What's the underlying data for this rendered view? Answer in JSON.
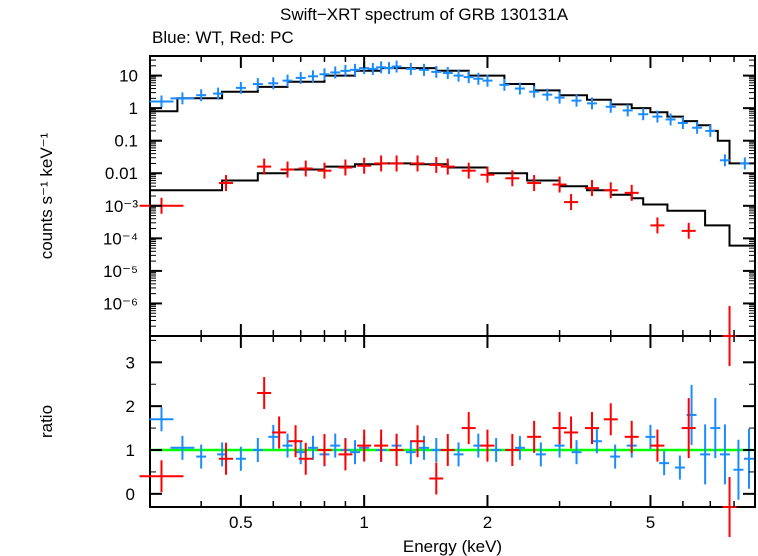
{
  "chart_data": [
    {
      "type": "scatter",
      "title": "Swift−XRT spectrum of GRB 130131A",
      "subtitle": "Blue: WT, Red: PC",
      "xlabel": "Energy (keV)",
      "ylabel": "counts s⁻¹ keV⁻¹",
      "xscale": "log",
      "yscale": "log",
      "xlim": [
        0.3,
        9.0
      ],
      "ylim": [
        1e-07,
        40
      ],
      "xticks": [
        "0.5",
        "1",
        "2",
        "5"
      ],
      "yticks": [
        {
          "value": 10,
          "label": "10"
        },
        {
          "value": 1,
          "label": "1"
        },
        {
          "value": 0.1,
          "label": "0.1"
        },
        {
          "value": 0.01,
          "label": "0.01"
        },
        {
          "value": 0.001,
          "label": "10⁻³"
        },
        {
          "value": 0.0001,
          "label": "10⁻⁴"
        },
        {
          "value": 1e-05,
          "label": "10⁻⁵"
        },
        {
          "value": 1e-06,
          "label": "10⁻⁶"
        }
      ],
      "colors": {
        "WT": "#1a8cff",
        "PC": "#ff0000",
        "model": "#000000"
      },
      "series": [
        {
          "key": "WT",
          "color": "#1a8cff",
          "points": [
            [
              0.32,
              1.6
            ],
            [
              0.36,
              2.0
            ],
            [
              0.4,
              2.5
            ],
            [
              0.44,
              2.8
            ],
            [
              0.5,
              4.2
            ],
            [
              0.55,
              5.5
            ],
            [
              0.6,
              5.8
            ],
            [
              0.65,
              7.0
            ],
            [
              0.7,
              8.5
            ],
            [
              0.75,
              9.5
            ],
            [
              0.8,
              11
            ],
            [
              0.85,
              12.5
            ],
            [
              0.9,
              14
            ],
            [
              0.95,
              15
            ],
            [
              1.0,
              17
            ],
            [
              1.05,
              16
            ],
            [
              1.1,
              18
            ],
            [
              1.15,
              17
            ],
            [
              1.2,
              19
            ],
            [
              1.3,
              16
            ],
            [
              1.4,
              15
            ],
            [
              1.5,
              13
            ],
            [
              1.6,
              12
            ],
            [
              1.7,
              10
            ],
            [
              1.8,
              9
            ],
            [
              1.9,
              8
            ],
            [
              2.0,
              7
            ],
            [
              2.2,
              5.2
            ],
            [
              2.4,
              4.0
            ],
            [
              2.6,
              3.2
            ],
            [
              2.8,
              2.6
            ],
            [
              3.0,
              2.1
            ],
            [
              3.3,
              1.7
            ],
            [
              3.6,
              1.4
            ],
            [
              4.0,
              1.1
            ],
            [
              4.4,
              0.85
            ],
            [
              4.8,
              0.65
            ],
            [
              5.2,
              0.55
            ],
            [
              5.6,
              0.45
            ],
            [
              6.0,
              0.35
            ],
            [
              6.5,
              0.25
            ],
            [
              7.0,
              0.2
            ],
            [
              7.6,
              0.025
            ],
            [
              8.5,
              0.02
            ]
          ]
        },
        {
          "key": "PC",
          "color": "#ff0000",
          "points": [
            [
              0.32,
              0.001
            ],
            [
              0.46,
              0.005
            ],
            [
              0.57,
              0.016
            ],
            [
              0.65,
              0.013
            ],
            [
              0.72,
              0.014
            ],
            [
              0.8,
              0.012
            ],
            [
              0.9,
              0.015
            ],
            [
              1.0,
              0.017
            ],
            [
              1.1,
              0.02
            ],
            [
              1.2,
              0.02
            ],
            [
              1.35,
              0.02
            ],
            [
              1.5,
              0.018
            ],
            [
              1.6,
              0.016
            ],
            [
              1.8,
              0.012
            ],
            [
              2.0,
              0.009
            ],
            [
              2.3,
              0.007
            ],
            [
              2.6,
              0.005
            ],
            [
              3.0,
              0.0045
            ],
            [
              3.2,
              0.0013
            ],
            [
              3.6,
              0.0035
            ],
            [
              4.0,
              0.003
            ],
            [
              4.5,
              0.0025
            ],
            [
              5.2,
              0.00025
            ],
            [
              6.2,
              0.00017
            ],
            [
              7.8,
              1e-07
            ]
          ]
        }
      ],
      "model": {
        "WT": [
          [
            0.3,
            0.8
          ],
          [
            0.35,
            2.0
          ],
          [
            0.45,
            3.2
          ],
          [
            0.55,
            4.5
          ],
          [
            0.65,
            6.5
          ],
          [
            0.8,
            10
          ],
          [
            0.95,
            14
          ],
          [
            1.1,
            17
          ],
          [
            1.3,
            17
          ],
          [
            1.5,
            14
          ],
          [
            1.8,
            10
          ],
          [
            2.2,
            5.5
          ],
          [
            2.6,
            3.5
          ],
          [
            3.0,
            2.5
          ],
          [
            3.5,
            1.8
          ],
          [
            4.0,
            1.3
          ],
          [
            4.5,
            1.0
          ],
          [
            5.0,
            0.75
          ],
          [
            5.5,
            0.55
          ],
          [
            6.0,
            0.4
          ],
          [
            6.5,
            0.3
          ],
          [
            7.0,
            0.2
          ],
          [
            7.3,
            0.1
          ],
          [
            7.8,
            0.02
          ],
          [
            9.0,
            0.01
          ]
        ],
        "PC": [
          [
            0.3,
            0.003
          ],
          [
            0.42,
            0.003
          ],
          [
            0.45,
            0.006
          ],
          [
            0.55,
            0.01
          ],
          [
            0.65,
            0.013
          ],
          [
            0.8,
            0.016
          ],
          [
            0.95,
            0.019
          ],
          [
            1.1,
            0.02
          ],
          [
            1.3,
            0.019
          ],
          [
            1.6,
            0.015
          ],
          [
            2.0,
            0.01
          ],
          [
            2.5,
            0.006
          ],
          [
            3.0,
            0.004
          ],
          [
            3.5,
            0.003
          ],
          [
            4.0,
            0.0022
          ],
          [
            4.5,
            0.0017
          ],
          [
            4.8,
            0.0011
          ],
          [
            5.5,
            0.0007
          ],
          [
            6.8,
            0.00025
          ],
          [
            7.8,
            6e-05
          ],
          [
            9.0,
            6e-05
          ]
        ]
      }
    },
    {
      "type": "scatter",
      "xlabel": "Energy (keV)",
      "ylabel": "ratio",
      "xscale": "log",
      "xlim": [
        0.3,
        9.0
      ],
      "ylim": [
        -0.3,
        3.6
      ],
      "yticks": [
        "0",
        "1",
        "2",
        "3"
      ],
      "reference_line": {
        "value": 1,
        "color": "#00ff00"
      },
      "series": [
        {
          "key": "WT",
          "color": "#1a8cff",
          "points": [
            [
              0.32,
              1.7
            ],
            [
              0.36,
              1.05
            ],
            [
              0.4,
              0.85
            ],
            [
              0.45,
              0.9
            ],
            [
              0.5,
              0.8
            ],
            [
              0.55,
              1.0
            ],
            [
              0.6,
              1.3
            ],
            [
              0.65,
              1.1
            ],
            [
              0.7,
              0.95
            ],
            [
              0.75,
              1.05
            ],
            [
              0.8,
              0.9
            ],
            [
              0.85,
              1.1
            ],
            [
              0.9,
              1.0
            ],
            [
              0.95,
              0.95
            ],
            [
              1.0,
              1.05
            ],
            [
              1.1,
              1.0
            ],
            [
              1.2,
              1.1
            ],
            [
              1.3,
              0.95
            ],
            [
              1.4,
              1.05
            ],
            [
              1.5,
              1.0
            ],
            [
              1.7,
              0.9
            ],
            [
              1.9,
              1.1
            ],
            [
              2.1,
              1.0
            ],
            [
              2.4,
              1.05
            ],
            [
              2.7,
              0.9
            ],
            [
              3.0,
              1.1
            ],
            [
              3.3,
              0.95
            ],
            [
              3.7,
              1.2
            ],
            [
              4.1,
              0.85
            ],
            [
              4.5,
              1.1
            ],
            [
              5.0,
              1.3
            ],
            [
              5.4,
              0.7
            ],
            [
              5.9,
              0.6
            ],
            [
              6.3,
              1.8
            ],
            [
              6.8,
              0.9
            ],
            [
              7.2,
              1.5
            ],
            [
              7.6,
              0.9
            ],
            [
              8.2,
              0.55
            ],
            [
              8.7,
              0.8
            ]
          ]
        },
        {
          "key": "PC",
          "color": "#ff0000",
          "points": [
            [
              0.32,
              0.4
            ],
            [
              0.46,
              0.8
            ],
            [
              0.57,
              2.3
            ],
            [
              0.62,
              1.4
            ],
            [
              0.68,
              1.2
            ],
            [
              0.72,
              0.8
            ],
            [
              0.8,
              1.0
            ],
            [
              0.9,
              0.9
            ],
            [
              1.0,
              1.1
            ],
            [
              1.1,
              1.1
            ],
            [
              1.2,
              1.0
            ],
            [
              1.35,
              1.2
            ],
            [
              1.5,
              0.35
            ],
            [
              1.6,
              1.0
            ],
            [
              1.8,
              1.5
            ],
            [
              2.0,
              1.1
            ],
            [
              2.3,
              1.0
            ],
            [
              2.6,
              1.3
            ],
            [
              3.0,
              1.5
            ],
            [
              3.2,
              1.4
            ],
            [
              3.6,
              1.5
            ],
            [
              4.0,
              1.7
            ],
            [
              4.5,
              1.3
            ],
            [
              5.2,
              1.1
            ],
            [
              6.2,
              1.5
            ],
            [
              7.8,
              -0.3
            ]
          ]
        }
      ]
    }
  ]
}
